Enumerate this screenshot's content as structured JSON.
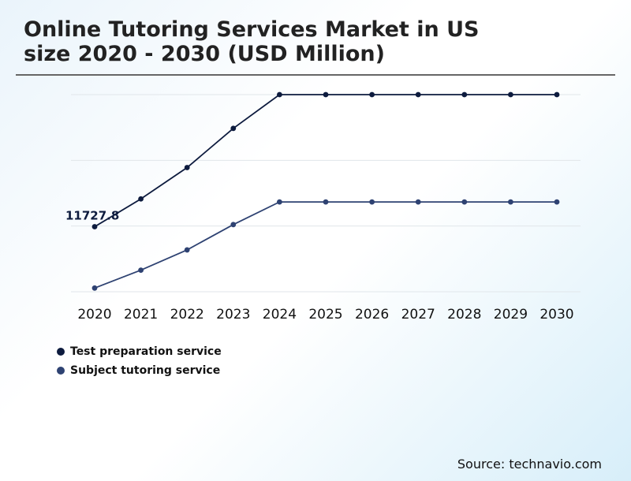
{
  "header": {
    "title_line1": "Online Tutoring Services Market in US",
    "title_line2": "size 2020 - 2030 (USD Million)"
  },
  "legend": {
    "items": [
      {
        "label": "Test preparation service",
        "color": "#0d1b3e"
      },
      {
        "label": "Subject tutoring service",
        "color": "#2e4272"
      }
    ]
  },
  "footer": {
    "source": "Source: technavio.com"
  },
  "chart_data": {
    "type": "line",
    "title": "Online Tutoring Services Market in US size 2020 - 2030 (USD Million)",
    "xlabel": "",
    "ylabel": "",
    "categories": [
      "2020",
      "2021",
      "2022",
      "2023",
      "2024",
      "2025",
      "2026",
      "2027",
      "2028",
      "2029",
      "2030"
    ],
    "series": [
      {
        "name": "Test preparation service",
        "color": "#0d1b3e",
        "values": [
          11727.8,
          12550,
          13480,
          14640,
          15640,
          15640,
          15640,
          15640,
          15640,
          15640,
          15640
        ]
      },
      {
        "name": "Subject tutoring service",
        "color": "#2e4272",
        "values": [
          9910,
          10440,
          11040,
          11790,
          12460,
          12460,
          12460,
          12460,
          12460,
          12460,
          12460
        ]
      }
    ],
    "annotations": [
      {
        "series": 0,
        "index": 0,
        "text": "11727.8"
      }
    ],
    "ylim": [
      9800,
      15640
    ],
    "grid": true,
    "legend_position": "bottom-left"
  }
}
